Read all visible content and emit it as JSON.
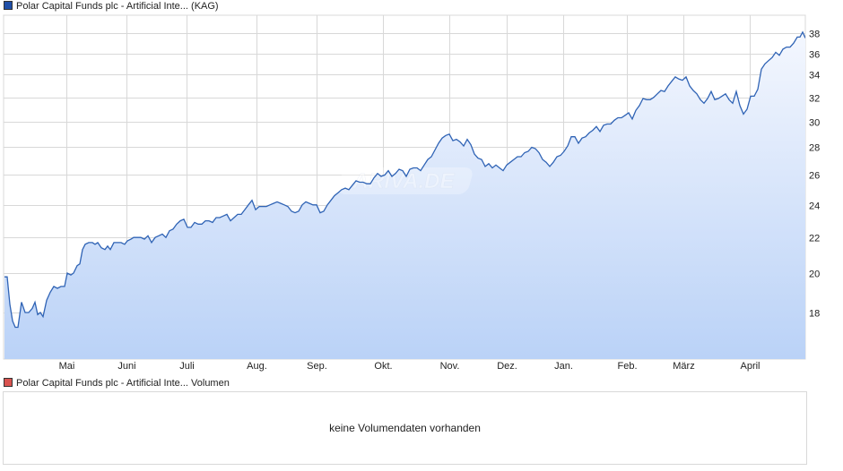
{
  "price_chart": {
    "legend_label": "Polar Capital Funds plc - Artificial Inte... (KAG)",
    "legend_color": "#1f4fa8",
    "line_color": "#2f63b5",
    "fill_top_color": "#f4f7fe",
    "fill_bottom_color": "#bad2f7",
    "grid_color": "#d8d8d8",
    "watermark": "ARIVA.DE"
  },
  "volume_chart": {
    "legend_label": "Polar Capital Funds plc - Artificial Inte... Volumen",
    "legend_color": "#d9534f",
    "empty_message": "keine Volumendaten vorhanden"
  },
  "chart_data": {
    "type": "area",
    "title": "Polar Capital Funds plc - Artificial Inte... (KAG)",
    "xlabel": "",
    "ylabel": "",
    "y_scale": "log",
    "ylim": [
      16.3,
      39
    ],
    "y_ticks": [
      18,
      20,
      22,
      24,
      26,
      28,
      30,
      32,
      34,
      36,
      38
    ],
    "x_ticks": [
      "Mai",
      "Juni",
      "Juli",
      "Aug.",
      "Sep.",
      "Okt.",
      "Nov.",
      "Dez.",
      "Jan.",
      "Feb.",
      "März",
      "April"
    ],
    "grid": true,
    "legend_position": "top-left",
    "series": [
      {
        "name": "Polar Capital Funds plc - Artificial Inte... (KAG)",
        "points": [
          [
            5,
            19.8
          ],
          [
            8,
            19.8
          ],
          [
            11,
            18.4
          ],
          [
            14,
            17.6
          ],
          [
            17,
            17.3
          ],
          [
            20,
            17.3
          ],
          [
            24,
            18.5
          ],
          [
            28,
            18.0
          ],
          [
            32,
            18.0
          ],
          [
            36,
            18.2
          ],
          [
            39,
            18.5
          ],
          [
            42,
            17.9
          ],
          [
            45,
            18.0
          ],
          [
            48,
            17.8
          ],
          [
            52,
            18.6
          ],
          [
            56,
            19.0
          ],
          [
            60,
            19.3
          ],
          [
            64,
            19.2
          ],
          [
            68,
            19.3
          ],
          [
            72,
            19.3
          ],
          [
            75,
            20.0
          ],
          [
            79,
            19.9
          ],
          [
            82,
            20.0
          ],
          [
            86,
            20.4
          ],
          [
            89,
            20.5
          ],
          [
            92,
            21.3
          ],
          [
            95,
            21.6
          ],
          [
            99,
            21.7
          ],
          [
            103,
            21.7
          ],
          [
            106,
            21.6
          ],
          [
            109,
            21.7
          ],
          [
            113,
            21.4
          ],
          [
            117,
            21.3
          ],
          [
            120,
            21.5
          ],
          [
            123,
            21.3
          ],
          [
            127,
            21.7
          ],
          [
            131,
            21.7
          ],
          [
            135,
            21.7
          ],
          [
            139,
            21.6
          ],
          [
            142,
            21.8
          ],
          [
            146,
            21.9
          ],
          [
            149,
            22.0
          ],
          [
            153,
            22.0
          ],
          [
            157,
            22.0
          ],
          [
            161,
            21.9
          ],
          [
            165,
            22.1
          ],
          [
            169,
            21.7
          ],
          [
            173,
            22.0
          ],
          [
            177,
            22.1
          ],
          [
            181,
            22.2
          ],
          [
            185,
            22.0
          ],
          [
            189,
            22.4
          ],
          [
            193,
            22.5
          ],
          [
            197,
            22.8
          ],
          [
            201,
            23.0
          ],
          [
            205,
            23.1
          ],
          [
            209,
            22.6
          ],
          [
            213,
            22.6
          ],
          [
            217,
            22.9
          ],
          [
            221,
            22.8
          ],
          [
            225,
            22.8
          ],
          [
            229,
            23.0
          ],
          [
            233,
            23.0
          ],
          [
            237,
            22.9
          ],
          [
            241,
            23.2
          ],
          [
            245,
            23.2
          ],
          [
            249,
            23.3
          ],
          [
            253,
            23.4
          ],
          [
            257,
            23.0
          ],
          [
            261,
            23.2
          ],
          [
            265,
            23.4
          ],
          [
            269,
            23.4
          ],
          [
            273,
            23.7
          ],
          [
            277,
            24.0
          ],
          [
            281,
            24.3
          ],
          [
            285,
            23.7
          ],
          [
            289,
            23.9
          ],
          [
            293,
            23.9
          ],
          [
            297,
            23.9
          ],
          [
            301,
            24.0
          ],
          [
            305,
            24.1
          ],
          [
            309,
            24.2
          ],
          [
            313,
            24.1
          ],
          [
            317,
            24.0
          ],
          [
            321,
            23.9
          ],
          [
            325,
            23.6
          ],
          [
            329,
            23.5
          ],
          [
            333,
            23.6
          ],
          [
            337,
            24.0
          ],
          [
            341,
            24.2
          ],
          [
            345,
            24.1
          ],
          [
            349,
            24.0
          ],
          [
            353,
            24.0
          ],
          [
            357,
            23.5
          ],
          [
            361,
            23.6
          ],
          [
            365,
            24.0
          ],
          [
            369,
            24.3
          ],
          [
            373,
            24.6
          ],
          [
            377,
            24.8
          ],
          [
            381,
            25.0
          ],
          [
            385,
            25.1
          ],
          [
            389,
            25.0
          ],
          [
            393,
            25.3
          ],
          [
            397,
            25.6
          ],
          [
            401,
            25.5
          ],
          [
            405,
            25.5
          ],
          [
            409,
            25.4
          ],
          [
            413,
            25.4
          ],
          [
            417,
            25.8
          ],
          [
            421,
            26.1
          ],
          [
            425,
            25.9
          ],
          [
            429,
            26.0
          ],
          [
            433,
            26.3
          ],
          [
            437,
            25.9
          ],
          [
            441,
            26.1
          ],
          [
            445,
            26.4
          ],
          [
            449,
            26.3
          ],
          [
            453,
            25.9
          ],
          [
            457,
            26.4
          ],
          [
            461,
            26.5
          ],
          [
            465,
            26.5
          ],
          [
            469,
            26.3
          ],
          [
            473,
            26.7
          ],
          [
            477,
            27.1
          ],
          [
            481,
            27.3
          ],
          [
            485,
            27.8
          ],
          [
            489,
            28.3
          ],
          [
            493,
            28.7
          ],
          [
            497,
            28.9
          ],
          [
            501,
            29.0
          ],
          [
            505,
            28.5
          ],
          [
            509,
            28.6
          ],
          [
            513,
            28.4
          ],
          [
            517,
            28.1
          ],
          [
            521,
            28.6
          ],
          [
            525,
            28.2
          ],
          [
            529,
            27.5
          ],
          [
            533,
            27.2
          ],
          [
            537,
            27.1
          ],
          [
            541,
            26.6
          ],
          [
            545,
            26.8
          ],
          [
            549,
            26.5
          ],
          [
            553,
            26.7
          ],
          [
            557,
            26.5
          ],
          [
            561,
            26.3
          ],
          [
            565,
            26.7
          ],
          [
            569,
            26.9
          ],
          [
            573,
            27.1
          ],
          [
            577,
            27.3
          ],
          [
            581,
            27.3
          ],
          [
            585,
            27.6
          ],
          [
            589,
            27.7
          ],
          [
            593,
            28.0
          ],
          [
            597,
            27.9
          ],
          [
            601,
            27.6
          ],
          [
            605,
            27.1
          ],
          [
            609,
            26.9
          ],
          [
            613,
            26.6
          ],
          [
            617,
            26.9
          ],
          [
            621,
            27.3
          ],
          [
            625,
            27.4
          ],
          [
            629,
            27.7
          ],
          [
            633,
            28.1
          ],
          [
            637,
            28.8
          ],
          [
            641,
            28.8
          ],
          [
            645,
            28.3
          ],
          [
            649,
            28.7
          ],
          [
            653,
            28.8
          ],
          [
            657,
            29.1
          ],
          [
            661,
            29.3
          ],
          [
            665,
            29.6
          ],
          [
            669,
            29.2
          ],
          [
            673,
            29.7
          ],
          [
            677,
            29.8
          ],
          [
            681,
            29.8
          ],
          [
            685,
            30.1
          ],
          [
            689,
            30.3
          ],
          [
            693,
            30.3
          ],
          [
            697,
            30.5
          ],
          [
            701,
            30.7
          ],
          [
            705,
            30.2
          ],
          [
            709,
            30.9
          ],
          [
            713,
            31.3
          ],
          [
            717,
            31.9
          ],
          [
            721,
            31.8
          ],
          [
            725,
            31.8
          ],
          [
            729,
            32.0
          ],
          [
            733,
            32.3
          ],
          [
            737,
            32.6
          ],
          [
            741,
            32.5
          ],
          [
            745,
            33.0
          ],
          [
            749,
            33.4
          ],
          [
            753,
            33.8
          ],
          [
            757,
            33.6
          ],
          [
            761,
            33.5
          ],
          [
            765,
            33.8
          ],
          [
            769,
            33.0
          ],
          [
            773,
            32.6
          ],
          [
            777,
            32.3
          ],
          [
            781,
            31.8
          ],
          [
            785,
            31.5
          ],
          [
            789,
            31.9
          ],
          [
            793,
            32.5
          ],
          [
            797,
            31.8
          ],
          [
            801,
            31.9
          ],
          [
            805,
            32.1
          ],
          [
            809,
            32.3
          ],
          [
            813,
            31.8
          ],
          [
            817,
            31.5
          ],
          [
            821,
            32.5
          ],
          [
            825,
            31.3
          ],
          [
            829,
            30.6
          ],
          [
            833,
            31.0
          ],
          [
            837,
            32.1
          ],
          [
            841,
            32.1
          ],
          [
            845,
            32.7
          ],
          [
            849,
            34.5
          ],
          [
            853,
            35.0
          ],
          [
            857,
            35.3
          ],
          [
            861,
            35.6
          ],
          [
            865,
            36.1
          ],
          [
            869,
            35.8
          ],
          [
            873,
            36.4
          ],
          [
            877,
            36.6
          ],
          [
            881,
            36.6
          ],
          [
            885,
            37.0
          ],
          [
            889,
            37.6
          ],
          [
            892,
            37.6
          ],
          [
            895,
            38.1
          ],
          [
            898,
            37.5
          ]
        ]
      }
    ]
  }
}
